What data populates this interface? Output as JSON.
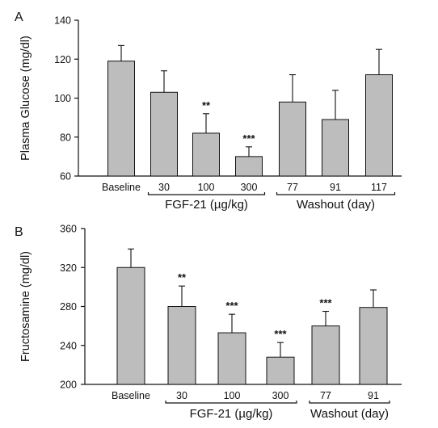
{
  "chart_data": [
    {
      "type": "bar",
      "panel": "A",
      "ylabel": "Plasma Glucose (mg/dl)",
      "ylim": [
        60,
        140
      ],
      "yticks": [
        60,
        80,
        100,
        120,
        140
      ],
      "categories": [
        "Baseline",
        "30",
        "100",
        "300",
        "77",
        "91",
        "117"
      ],
      "values": [
        119,
        103,
        82,
        70,
        98,
        89,
        112
      ],
      "errors": [
        8,
        11,
        10,
        5,
        14,
        15,
        13
      ],
      "significance": [
        "",
        "",
        "**",
        "***",
        "",
        "",
        ""
      ],
      "groups": [
        {
          "label": "FGF-21 (µg/kg)",
          "categories": [
            "30",
            "100",
            "300"
          ]
        },
        {
          "label": "Washout (day)",
          "categories": [
            "77",
            "91",
            "117"
          ]
        }
      ],
      "grid": false,
      "bar_color": "#bdbdbd"
    },
    {
      "type": "bar",
      "panel": "B",
      "ylabel": "Fructosamine (mg/dl)",
      "ylim": [
        200,
        360
      ],
      "yticks": [
        200,
        240,
        280,
        320,
        360
      ],
      "categories": [
        "Baseline",
        "30",
        "100",
        "300",
        "77",
        "91"
      ],
      "values": [
        320,
        280,
        253,
        228,
        260,
        279
      ],
      "errors": [
        19,
        21,
        19,
        15,
        15,
        18
      ],
      "significance": [
        "",
        "**",
        "***",
        "***",
        "***",
        ""
      ],
      "groups": [
        {
          "label": "FGF-21 (µg/kg)",
          "categories": [
            "30",
            "100",
            "300"
          ]
        },
        {
          "label": "Washout (day)",
          "categories": [
            "77",
            "91"
          ]
        }
      ],
      "grid": false,
      "bar_color": "#bdbdbd"
    }
  ]
}
